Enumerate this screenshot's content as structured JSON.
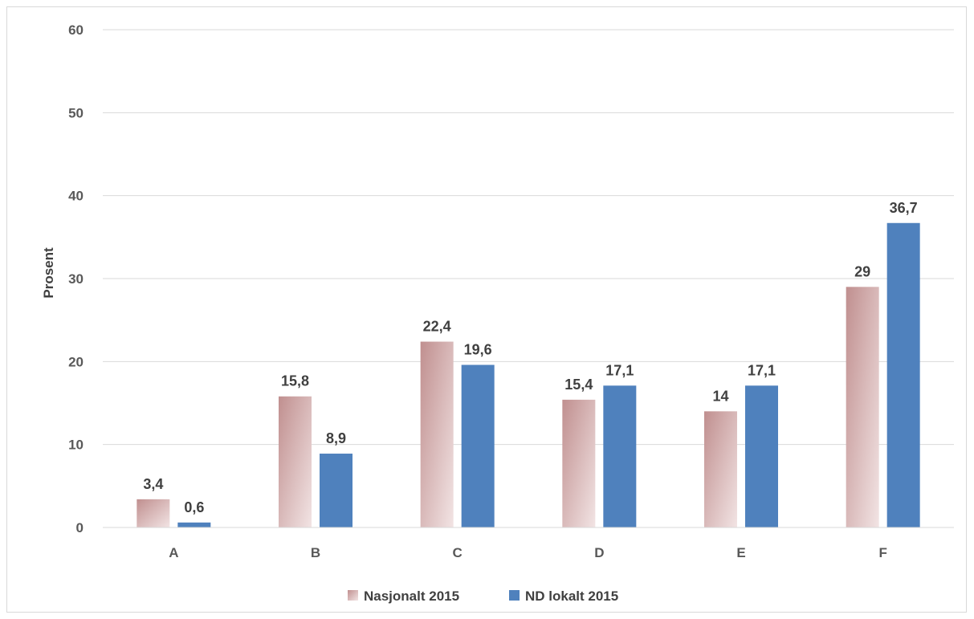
{
  "chart_data": {
    "type": "bar",
    "categories": [
      "A",
      "B",
      "C",
      "D",
      "E",
      "F"
    ],
    "series": [
      {
        "name": "Nasjonalt 2015",
        "values": [
          3.4,
          15.8,
          22.4,
          15.4,
          14,
          29
        ],
        "labels": [
          "3,4",
          "15,8",
          "22,4",
          "15,4",
          "14",
          "29"
        ],
        "color": "#c49a9a"
      },
      {
        "name": "ND lokalt 2015",
        "values": [
          0.6,
          8.9,
          19.6,
          17.1,
          17.1,
          36.7
        ],
        "labels": [
          "0,6",
          "8,9",
          "19,6",
          "17,1",
          "17,1",
          "36,7"
        ],
        "color": "#4f81bd"
      }
    ],
    "ylabel": "Prosent",
    "xlabel": "",
    "ylim": [
      0,
      60
    ],
    "yticks": [
      "0",
      "10",
      "20",
      "30",
      "40",
      "50",
      "60"
    ],
    "grid": true,
    "legend": "bottom"
  }
}
